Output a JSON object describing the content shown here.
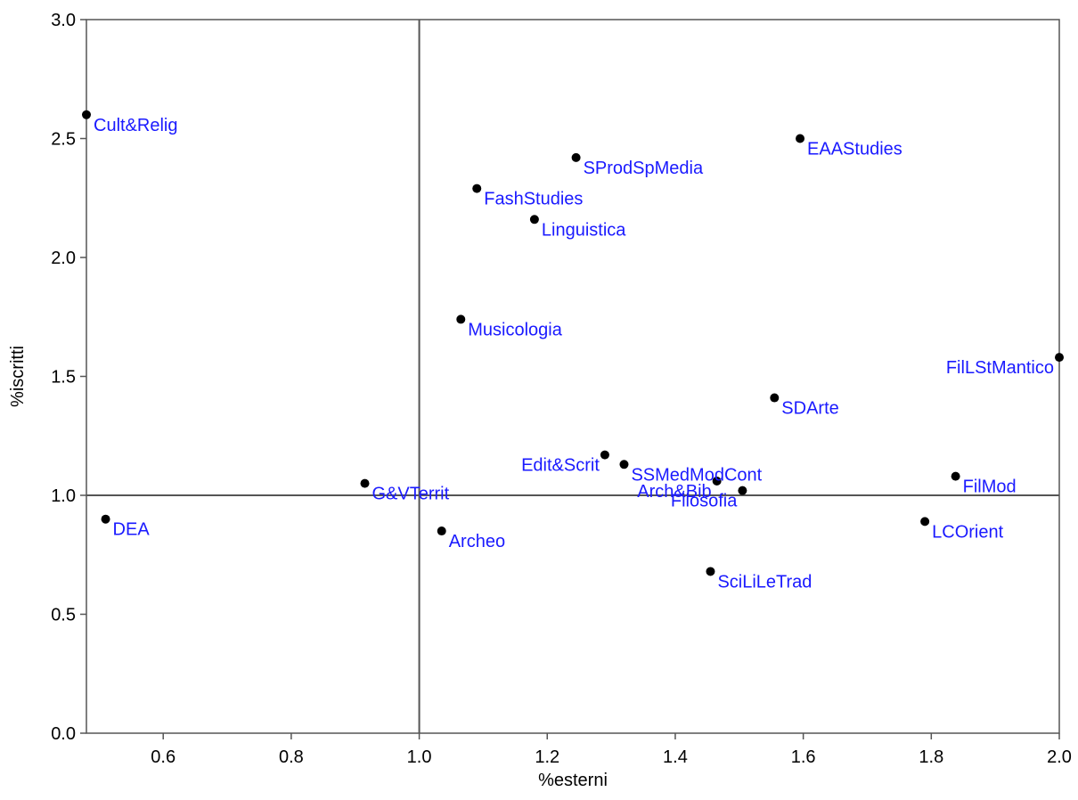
{
  "chart_data": {
    "type": "scatter",
    "title": "",
    "xlabel": "%esterni",
    "ylabel": "%iscritti",
    "xlim": [
      0.48,
      2.0
    ],
    "ylim": [
      0.0,
      3.0
    ],
    "x_ticks": [
      "0.6",
      "0.8",
      "1.0",
      "1.2",
      "1.4",
      "1.6",
      "1.8",
      "2.0"
    ],
    "x_tick_values": [
      0.6,
      0.8,
      1.0,
      1.2,
      1.4,
      1.6,
      1.8,
      2.0
    ],
    "y_ticks": [
      "0.0",
      "0.5",
      "1.0",
      "1.5",
      "2.0",
      "2.5",
      "3.0"
    ],
    "y_tick_values": [
      0.0,
      0.5,
      1.0,
      1.5,
      2.0,
      2.5,
      3.0
    ],
    "reference_lines": {
      "x": 1.0,
      "y": 1.0
    },
    "grid": false,
    "point_color": "#000000",
    "label_color": "#1a1aff",
    "points": [
      {
        "label": "Cult&Relig",
        "x": 0.48,
        "y": 2.6,
        "anchor": "start"
      },
      {
        "label": "EAAStudies",
        "x": 1.595,
        "y": 2.5,
        "anchor": "start"
      },
      {
        "label": "SProdSpMedia",
        "x": 1.245,
        "y": 2.42,
        "anchor": "start"
      },
      {
        "label": "FashStudies",
        "x": 1.09,
        "y": 2.29,
        "anchor": "start"
      },
      {
        "label": "Linguistica",
        "x": 1.18,
        "y": 2.16,
        "anchor": "start"
      },
      {
        "label": "Musicologia",
        "x": 1.065,
        "y": 1.74,
        "anchor": "start"
      },
      {
        "label": "FilLStMantico",
        "x": 2.0,
        "y": 1.58,
        "anchor": "end"
      },
      {
        "label": "SDArte",
        "x": 1.555,
        "y": 1.41,
        "anchor": "start"
      },
      {
        "label": "Edit&Scrit",
        "x": 1.29,
        "y": 1.17,
        "anchor": "end"
      },
      {
        "label": "SSMedModCont",
        "x": 1.32,
        "y": 1.13,
        "anchor": "start"
      },
      {
        "label": "FilMod",
        "x": 1.838,
        "y": 1.08,
        "anchor": "start"
      },
      {
        "label": "Arch&Bib",
        "x": 1.465,
        "y": 1.06,
        "anchor": "end"
      },
      {
        "label": "G&VTerrit",
        "x": 0.915,
        "y": 1.05,
        "anchor": "start"
      },
      {
        "label": "Filosofia",
        "x": 1.505,
        "y": 1.02,
        "anchor": "end"
      },
      {
        "label": "DEA",
        "x": 0.51,
        "y": 0.9,
        "anchor": "start"
      },
      {
        "label": "LCOrient",
        "x": 1.79,
        "y": 0.89,
        "anchor": "start"
      },
      {
        "label": "Archeo",
        "x": 1.035,
        "y": 0.85,
        "anchor": "start"
      },
      {
        "label": "SciLiLeTrad",
        "x": 1.455,
        "y": 0.68,
        "anchor": "start"
      }
    ]
  }
}
